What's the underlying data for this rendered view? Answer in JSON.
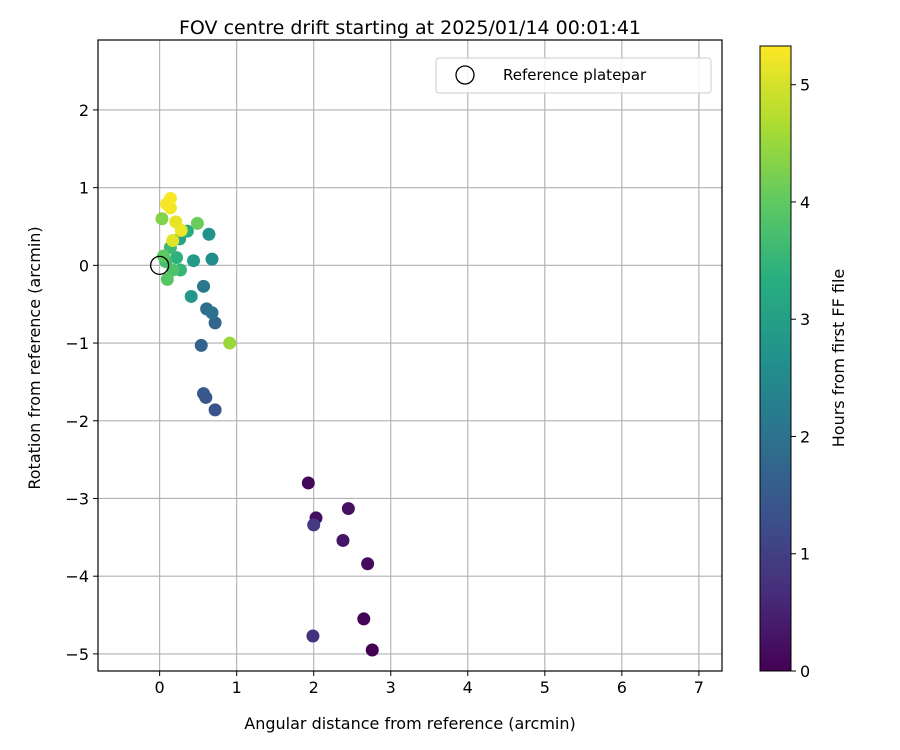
{
  "chart_data": {
    "type": "scatter",
    "title": "FOV centre drift starting at 2025/01/14 00:01:41",
    "xlabel": "Angular distance from reference (arcmin)",
    "ylabel": "Rotation from reference (arcmin)",
    "xlim": [
      -0.8,
      7.3
    ],
    "ylim": [
      -5.22,
      2.9
    ],
    "xticks": [
      "0",
      "1",
      "2",
      "3",
      "4",
      "5",
      "6",
      "7"
    ],
    "yticks": [
      "2",
      "1",
      "0",
      "−1",
      "−2",
      "−3",
      "−4",
      "−5"
    ],
    "xtick_values": [
      0,
      1,
      2,
      3,
      4,
      5,
      6,
      7
    ],
    "ytick_values": [
      2,
      1,
      0,
      -1,
      -2,
      -3,
      -4,
      -5
    ],
    "grid": true,
    "legend": {
      "label": "Reference platepar",
      "placement": "top-right",
      "marker": "open-circle"
    },
    "reference_point": {
      "x": 0.0,
      "y": 0.0
    },
    "colorbar": {
      "label": "Hours from first FF file",
      "colormap": "viridis",
      "min": 0,
      "max": 5.33,
      "ticks": [
        "0",
        "1",
        "2",
        "3",
        "4",
        "5"
      ],
      "tick_values": [
        0,
        1,
        2,
        3,
        4,
        5
      ]
    },
    "points": [
      {
        "x": 2.76,
        "y": -4.95,
        "h": 0.0
      },
      {
        "x": 2.65,
        "y": -4.55,
        "h": 0.05
      },
      {
        "x": 2.7,
        "y": -3.84,
        "h": 0.15
      },
      {
        "x": 2.03,
        "y": -3.25,
        "h": 0.2
      },
      {
        "x": 1.93,
        "y": -2.8,
        "h": 0.1
      },
      {
        "x": 2.45,
        "y": -3.13,
        "h": 0.25
      },
      {
        "x": 2.38,
        "y": -3.54,
        "h": 0.3
      },
      {
        "x": 2.0,
        "y": -3.34,
        "h": 0.9
      },
      {
        "x": 1.99,
        "y": -4.77,
        "h": 0.75
      },
      {
        "x": 0.72,
        "y": -1.86,
        "h": 1.35
      },
      {
        "x": 0.57,
        "y": -1.65,
        "h": 1.5
      },
      {
        "x": 0.6,
        "y": -1.7,
        "h": 1.45
      },
      {
        "x": 0.54,
        "y": -1.03,
        "h": 1.7
      },
      {
        "x": 0.72,
        "y": -0.74,
        "h": 1.75
      },
      {
        "x": 0.61,
        "y": -0.56,
        "h": 1.9
      },
      {
        "x": 0.68,
        "y": -0.61,
        "h": 2.0
      },
      {
        "x": 0.57,
        "y": -0.27,
        "h": 2.1
      },
      {
        "x": 0.41,
        "y": -0.4,
        "h": 2.8
      },
      {
        "x": 0.68,
        "y": 0.08,
        "h": 2.6
      },
      {
        "x": 0.64,
        "y": 0.4,
        "h": 2.7
      },
      {
        "x": 0.44,
        "y": 0.06,
        "h": 2.9
      },
      {
        "x": 0.26,
        "y": 0.34,
        "h": 3.1
      },
      {
        "x": 0.36,
        "y": 0.44,
        "h": 3.3
      },
      {
        "x": 0.22,
        "y": 0.1,
        "h": 3.4
      },
      {
        "x": 0.27,
        "y": -0.06,
        "h": 3.5
      },
      {
        "x": 0.14,
        "y": 0.23,
        "h": 3.6
      },
      {
        "x": 0.08,
        "y": 0.05,
        "h": 3.7
      },
      {
        "x": 0.17,
        "y": -0.06,
        "h": 3.8
      },
      {
        "x": 0.1,
        "y": -0.18,
        "h": 3.9
      },
      {
        "x": 0.05,
        "y": 0.12,
        "h": 4.0
      },
      {
        "x": 0.49,
        "y": 0.54,
        "h": 4.1
      },
      {
        "x": 0.03,
        "y": 0.6,
        "h": 4.3
      },
      {
        "x": 0.91,
        "y": -1.0,
        "h": 4.5
      },
      {
        "x": 0.17,
        "y": 0.32,
        "h": 5.1
      },
      {
        "x": 0.21,
        "y": 0.56,
        "h": 5.15
      },
      {
        "x": 0.28,
        "y": 0.45,
        "h": 5.2
      },
      {
        "x": 0.14,
        "y": 0.74,
        "h": 5.25
      },
      {
        "x": 0.09,
        "y": 0.79,
        "h": 5.28
      },
      {
        "x": 0.14,
        "y": 0.86,
        "h": 5.3
      }
    ]
  }
}
